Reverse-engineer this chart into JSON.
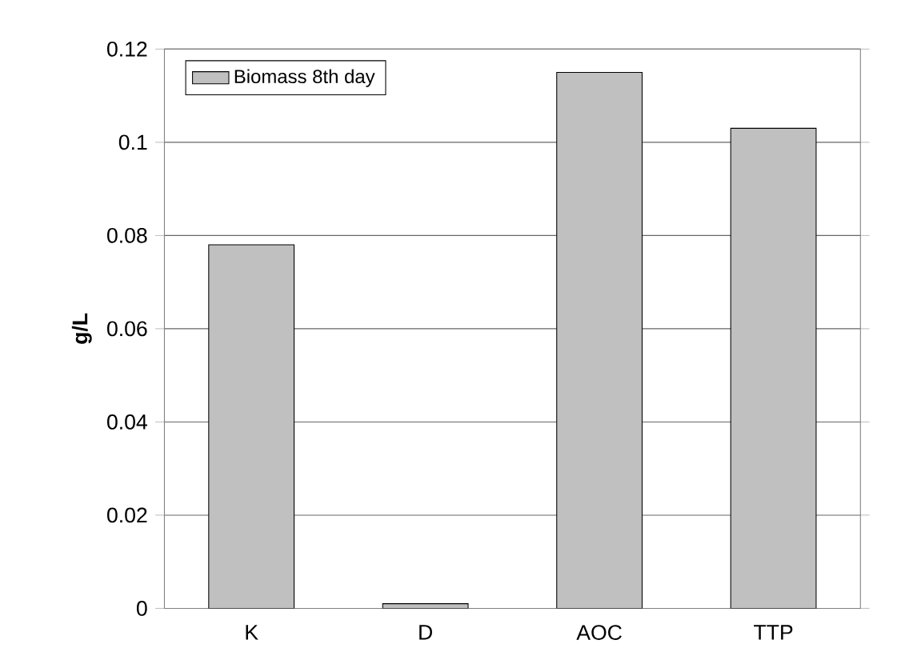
{
  "chart_data": {
    "type": "bar",
    "ylabel": "g/L",
    "categories": [
      "K",
      "D",
      "AOC",
      "TTP"
    ],
    "series": [
      {
        "name": "Biomass 8th day",
        "color": "#c0c0c0",
        "values": [
          0.078,
          0.001,
          0.115,
          0.103
        ]
      }
    ],
    "ylim": [
      0,
      0.12
    ],
    "yticks": [
      0,
      0.02,
      0.04,
      0.06,
      0.08,
      0.1,
      0.12
    ],
    "grid": "y",
    "legend": "top left"
  }
}
